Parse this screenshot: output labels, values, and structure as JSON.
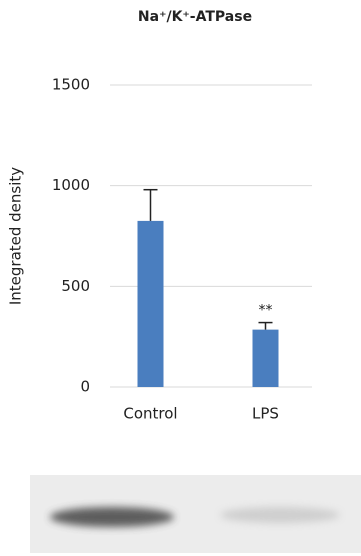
{
  "chart_data": {
    "type": "bar",
    "title": "Na⁺/K⁺-ATPase",
    "y_label": "Integrated density",
    "categories": [
      "Control",
      "LPS"
    ],
    "values": [
      825,
      285
    ],
    "errors": [
      155,
      35
    ],
    "annotations": [
      null,
      "**"
    ],
    "color": "#4a7ebf",
    "ylim": [
      0,
      1500
    ],
    "yticks": [
      0,
      500,
      1000,
      1500
    ],
    "grid": true
  }
}
